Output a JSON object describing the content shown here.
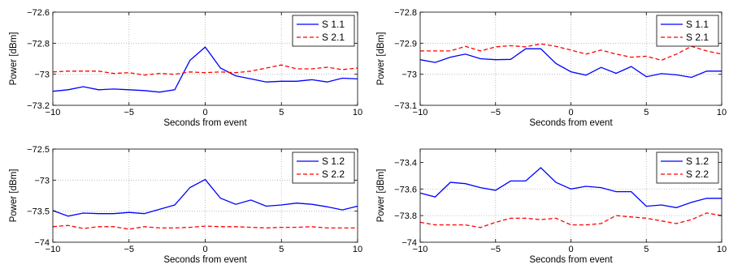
{
  "chart_data": [
    {
      "type": "line",
      "xlabel": "Seconds from event",
      "ylabel": "Power [dBm]",
      "xlim": [
        -10,
        10
      ],
      "ylim": [
        -73.2,
        -72.6
      ],
      "xticks": [
        -10,
        -5,
        0,
        5,
        10
      ],
      "yticks": [
        -73.2,
        -73,
        -72.8,
        -72.6
      ],
      "xtick_labels": [
        "−10",
        "−5",
        "0",
        "5",
        "10"
      ],
      "ytick_labels": [
        "−73.2",
        "−73",
        "−72.8",
        "−72.6"
      ],
      "grid": true,
      "legend_position": "top-right",
      "x": [
        -10,
        -9,
        -8,
        -7,
        -6,
        -5,
        -4,
        -3,
        -2,
        -1,
        0,
        1,
        2,
        3,
        4,
        5,
        6,
        7,
        8,
        9,
        10
      ],
      "series": [
        {
          "name": "S 1.1",
          "color": "#0000ff",
          "style": "solid",
          "values": [
            -73.11,
            -73.1,
            -73.08,
            -73.1,
            -73.095,
            -73.1,
            -73.105,
            -73.115,
            -73.1,
            -72.91,
            -72.825,
            -72.96,
            -73.01,
            -73.03,
            -73.05,
            -73.045,
            -73.045,
            -73.035,
            -73.05,
            -73.025,
            -73.03
          ]
        },
        {
          "name": "S 2.1",
          "color": "#ff0000",
          "style": "dashed",
          "values": [
            -72.985,
            -72.98,
            -72.98,
            -72.98,
            -72.995,
            -72.99,
            -73.005,
            -72.995,
            -73.0,
            -72.985,
            -72.99,
            -72.985,
            -72.99,
            -72.98,
            -72.96,
            -72.94,
            -72.965,
            -72.965,
            -72.955,
            -72.97,
            -72.96
          ]
        }
      ]
    },
    {
      "type": "line",
      "xlabel": "Seconds from event",
      "ylabel": "Power [dBm]",
      "xlim": [
        -10,
        10
      ],
      "ylim": [
        -73.1,
        -72.8
      ],
      "xticks": [
        -10,
        -5,
        0,
        5,
        10
      ],
      "yticks": [
        -73.1,
        -73,
        -72.9,
        -72.8
      ],
      "xtick_labels": [
        "−10",
        "−5",
        "0",
        "5",
        "10"
      ],
      "ytick_labels": [
        "−73.1",
        "−73",
        "−72.9",
        "−72.8"
      ],
      "grid": true,
      "legend_position": "top-right",
      "x": [
        -10,
        -9,
        -8,
        -7,
        -6,
        -5,
        -4,
        -3,
        -2,
        -1,
        0,
        1,
        2,
        3,
        4,
        5,
        6,
        7,
        8,
        9,
        10
      ],
      "series": [
        {
          "name": "S 1.1",
          "color": "#0000ff",
          "style": "solid",
          "values": [
            -72.953,
            -72.962,
            -72.945,
            -72.935,
            -72.95,
            -72.953,
            -72.952,
            -72.918,
            -72.918,
            -72.965,
            -72.992,
            -73.003,
            -72.978,
            -72.997,
            -72.975,
            -73.008,
            -72.998,
            -73.002,
            -73.01,
            -72.99,
            -72.99
          ]
        },
        {
          "name": "S 2.1",
          "color": "#ff0000",
          "style": "dashed",
          "values": [
            -72.925,
            -72.925,
            -72.925,
            -72.91,
            -72.925,
            -72.912,
            -72.908,
            -72.912,
            -72.902,
            -72.91,
            -72.922,
            -72.935,
            -72.922,
            -72.935,
            -72.945,
            -72.942,
            -72.955,
            -72.935,
            -72.91,
            -72.925,
            -72.935
          ]
        }
      ]
    },
    {
      "type": "line",
      "xlabel": "Seconds from event",
      "ylabel": "Power [dBm]",
      "xlim": [
        -10,
        10
      ],
      "ylim": [
        -74,
        -72.5
      ],
      "xticks": [
        -10,
        -5,
        0,
        5,
        10
      ],
      "yticks": [
        -74,
        -73.5,
        -73,
        -72.5
      ],
      "xtick_labels": [
        "−10",
        "−5",
        "0",
        "5",
        "10"
      ],
      "ytick_labels": [
        "−74",
        "−73.5",
        "−73",
        "−72.5"
      ],
      "grid": true,
      "legend_position": "top-right",
      "x": [
        -10,
        -9,
        -8,
        -7,
        -6,
        -5,
        -4,
        -3,
        -2,
        -1,
        0,
        1,
        2,
        3,
        4,
        5,
        6,
        7,
        8,
        9,
        10
      ],
      "series": [
        {
          "name": "S 1.2",
          "color": "#0000ff",
          "style": "solid",
          "values": [
            -73.49,
            -73.58,
            -73.53,
            -73.54,
            -73.54,
            -73.52,
            -73.54,
            -73.47,
            -73.4,
            -73.12,
            -72.99,
            -73.29,
            -73.39,
            -73.32,
            -73.42,
            -73.4,
            -73.37,
            -73.39,
            -73.43,
            -73.48,
            -73.42
          ]
        },
        {
          "name": "S 2.2",
          "color": "#ff0000",
          "style": "dashed",
          "values": [
            -73.75,
            -73.73,
            -73.78,
            -73.75,
            -73.75,
            -73.79,
            -73.75,
            -73.77,
            -73.77,
            -73.76,
            -73.74,
            -73.75,
            -73.75,
            -73.76,
            -73.77,
            -73.76,
            -73.76,
            -73.75,
            -73.77,
            -73.77,
            -73.77
          ]
        }
      ]
    },
    {
      "type": "line",
      "xlabel": "Seconds from event",
      "ylabel": "Power [dBm]",
      "xlim": [
        -10,
        10
      ],
      "ylim": [
        -74,
        -73.3
      ],
      "xticks": [
        -10,
        -5,
        0,
        5,
        10
      ],
      "yticks": [
        -74,
        -73.8,
        -73.6,
        -73.4
      ],
      "xtick_labels": [
        "−10",
        "−5",
        "0",
        "5",
        "10"
      ],
      "ytick_labels": [
        "−74",
        "−73.8",
        "−73.6",
        "−73.4"
      ],
      "grid": true,
      "legend_position": "top-right",
      "x": [
        -10,
        -9,
        -8,
        -7,
        -6,
        -5,
        -4,
        -3,
        -2,
        -1,
        0,
        1,
        2,
        3,
        4,
        5,
        6,
        7,
        8,
        9,
        10
      ],
      "series": [
        {
          "name": "S 1.2",
          "color": "#0000ff",
          "style": "solid",
          "values": [
            -73.63,
            -73.66,
            -73.55,
            -73.56,
            -73.59,
            -73.61,
            -73.54,
            -73.54,
            -73.44,
            -73.55,
            -73.6,
            -73.58,
            -73.59,
            -73.62,
            -73.62,
            -73.73,
            -73.72,
            -73.74,
            -73.7,
            -73.67,
            -73.67
          ]
        },
        {
          "name": "S 2.2",
          "color": "#ff0000",
          "style": "dashed",
          "values": [
            -73.85,
            -73.87,
            -73.87,
            -73.87,
            -73.89,
            -73.85,
            -73.82,
            -73.82,
            -73.83,
            -73.82,
            -73.87,
            -73.87,
            -73.86,
            -73.8,
            -73.81,
            -73.82,
            -73.84,
            -73.86,
            -73.83,
            -73.78,
            -73.8
          ]
        }
      ]
    }
  ]
}
